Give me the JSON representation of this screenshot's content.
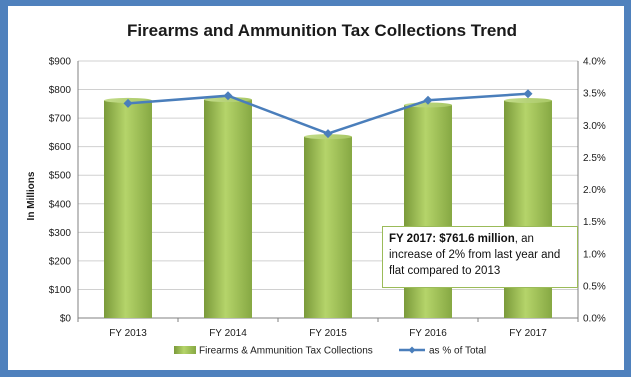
{
  "chart_data": {
    "type": "bar",
    "title": "Firearms and Ammunition Tax Collections Trend",
    "categories": [
      "FY 2013",
      "FY 2014",
      "FY 2015",
      "FY 2016",
      "FY 2017"
    ],
    "ylabel": "In Millions",
    "ylim": [
      0,
      900
    ],
    "y_ticks": [
      "$0",
      "$100",
      "$200",
      "$300",
      "$400",
      "$500",
      "$600",
      "$700",
      "$800",
      "$900"
    ],
    "y2lim": [
      0,
      4.0
    ],
    "y2_ticks": [
      "0.0%",
      "0.5%",
      "1.0%",
      "1.5%",
      "2.0%",
      "2.5%",
      "3.0%",
      "3.5%",
      "4.0%"
    ],
    "grid": true,
    "legend_position": "bottom",
    "series": [
      {
        "name": "Firearms & Ammunition Tax Collections",
        "type": "bar",
        "axis": "left",
        "values": [
          762,
          765,
          635,
          746,
          761.6
        ],
        "color": "#9bbb59"
      },
      {
        "name": "as % of Total",
        "type": "line",
        "axis": "right",
        "values": [
          3.34,
          3.46,
          2.87,
          3.39,
          3.49
        ],
        "color": "#4a7ebb"
      }
    ],
    "annotation": {
      "bold": "FY 2017: $761.6 million",
      "text": ", an increase of 2% from last year and flat compared to 2013"
    }
  }
}
